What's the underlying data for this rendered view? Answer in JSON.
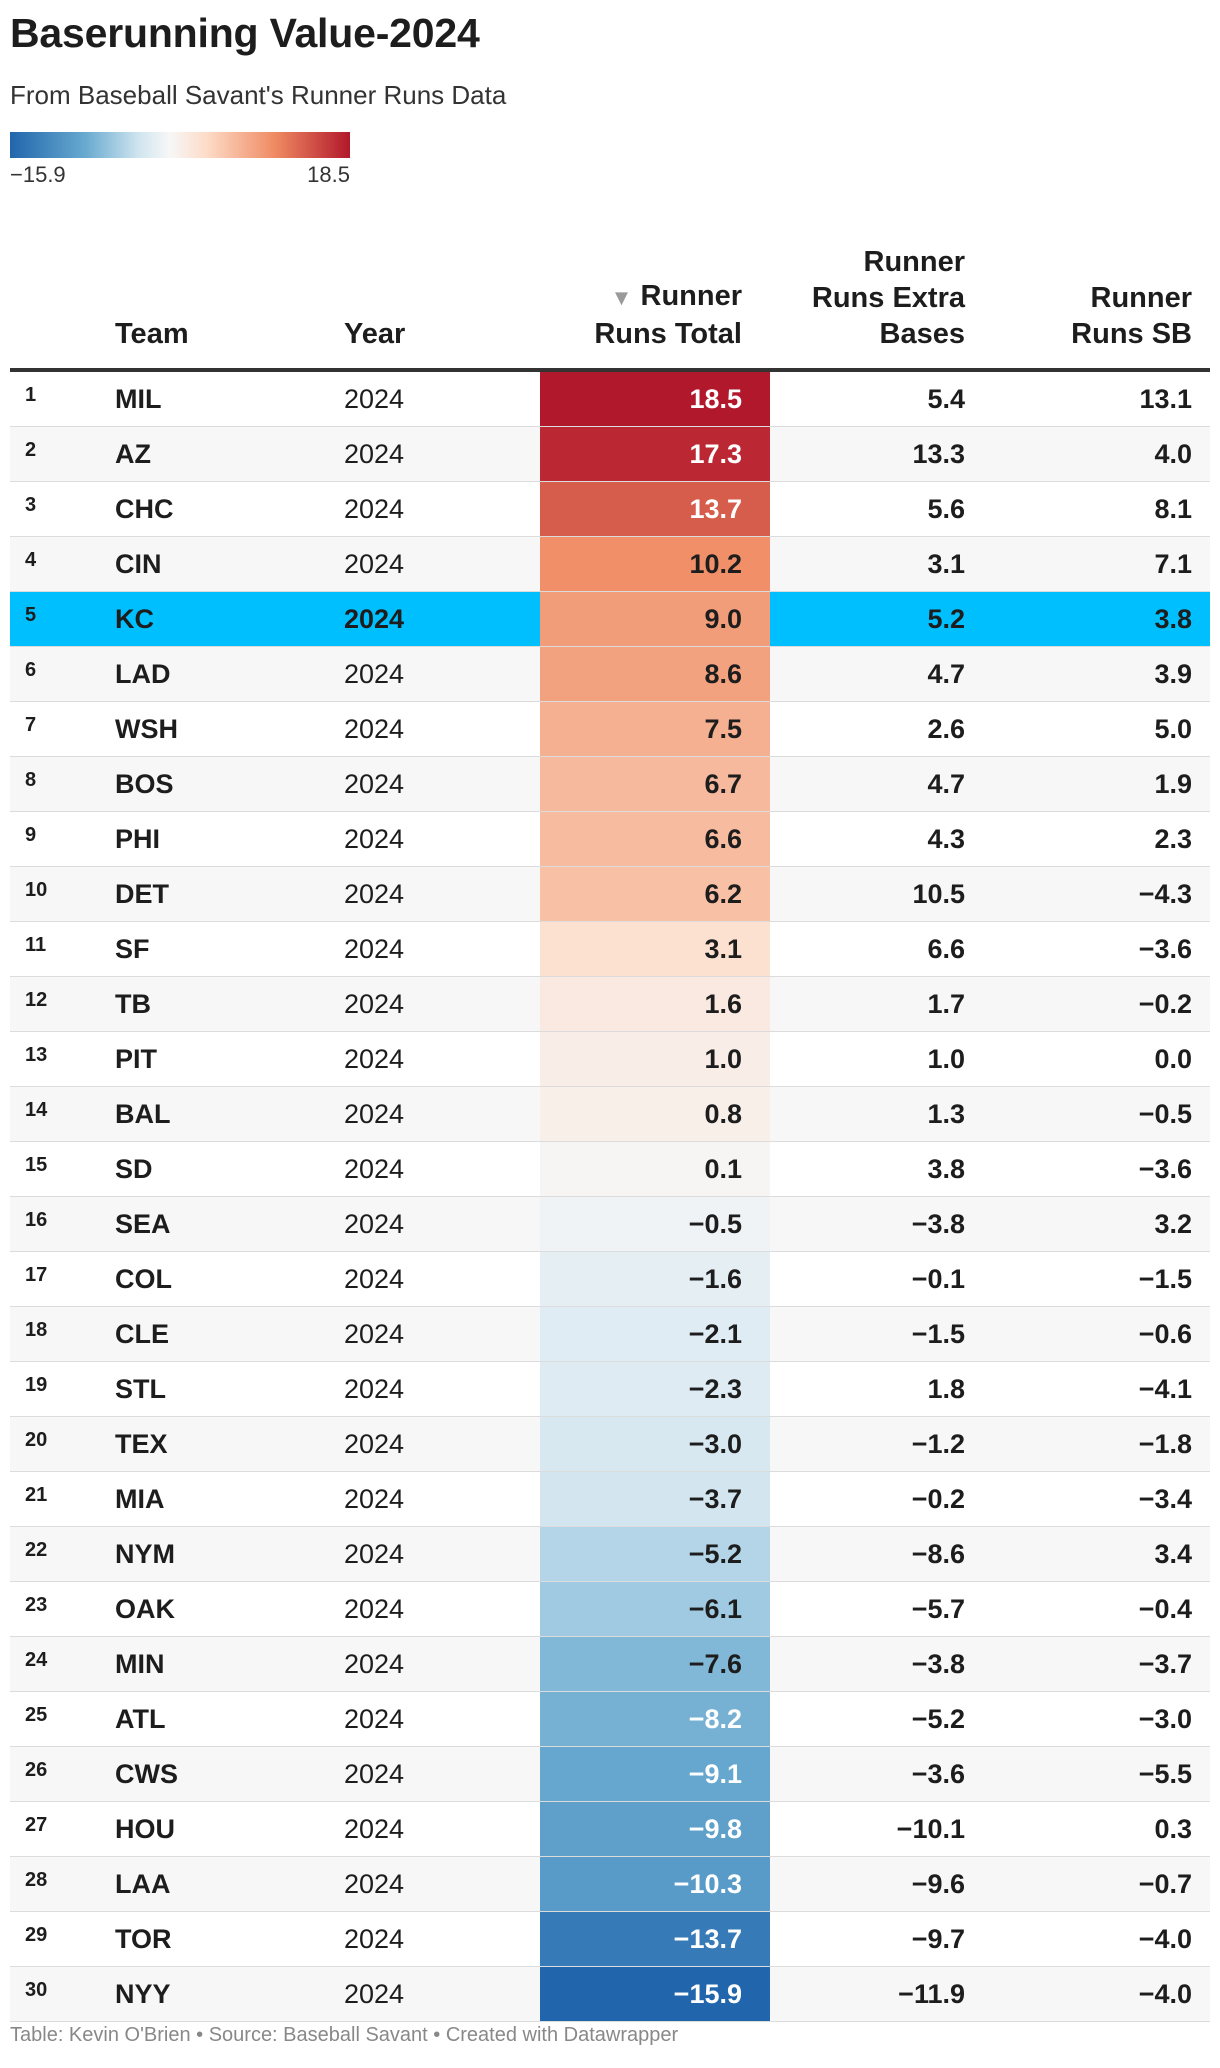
{
  "header": {
    "title": "Baserunning Value-2024",
    "subtitle": "From Baseball Savant's Runner Runs Data"
  },
  "legend": {
    "min_label": "−15.9",
    "max_label": "18.5"
  },
  "colors": {
    "highlight_row": "#00bfff",
    "scale_low": "#2166ac",
    "scale_mid": "#f7f7f7",
    "scale_high": "#b2182b"
  },
  "columns": {
    "team": "Team",
    "year": "Year",
    "sort_indicator": "▼",
    "total_line1": "Runner",
    "total_line2": "Runs Total",
    "xb_line1": "Runner",
    "xb_line2": "Runs Extra",
    "xb_line3": "Bases",
    "sb_line1": "Runner",
    "sb_line2": "Runs SB"
  },
  "chart_data": {
    "type": "table",
    "title": "Baserunning Value-2024",
    "subtitle": "From Baseball Savant's Runner Runs Data",
    "color_scale_column": "Runner Runs Total",
    "color_scale_range": [
      -15.9,
      18.5
    ],
    "highlighted_team": "KC",
    "rows": [
      {
        "rank": "1",
        "team": "MIL",
        "year": "2024",
        "total": "18.5",
        "xb": "5.4",
        "sb": "13.1"
      },
      {
        "rank": "2",
        "team": "AZ",
        "year": "2024",
        "total": "17.3",
        "xb": "13.3",
        "sb": "4.0"
      },
      {
        "rank": "3",
        "team": "CHC",
        "year": "2024",
        "total": "13.7",
        "xb": "5.6",
        "sb": "8.1"
      },
      {
        "rank": "4",
        "team": "CIN",
        "year": "2024",
        "total": "10.2",
        "xb": "3.1",
        "sb": "7.1"
      },
      {
        "rank": "5",
        "team": "KC",
        "year": "2024",
        "total": "9.0",
        "xb": "5.2",
        "sb": "3.8"
      },
      {
        "rank": "6",
        "team": "LAD",
        "year": "2024",
        "total": "8.6",
        "xb": "4.7",
        "sb": "3.9"
      },
      {
        "rank": "7",
        "team": "WSH",
        "year": "2024",
        "total": "7.5",
        "xb": "2.6",
        "sb": "5.0"
      },
      {
        "rank": "8",
        "team": "BOS",
        "year": "2024",
        "total": "6.7",
        "xb": "4.7",
        "sb": "1.9"
      },
      {
        "rank": "9",
        "team": "PHI",
        "year": "2024",
        "total": "6.6",
        "xb": "4.3",
        "sb": "2.3"
      },
      {
        "rank": "10",
        "team": "DET",
        "year": "2024",
        "total": "6.2",
        "xb": "10.5",
        "sb": "−4.3"
      },
      {
        "rank": "11",
        "team": "SF",
        "year": "2024",
        "total": "3.1",
        "xb": "6.6",
        "sb": "−3.6"
      },
      {
        "rank": "12",
        "team": "TB",
        "year": "2024",
        "total": "1.6",
        "xb": "1.7",
        "sb": "−0.2"
      },
      {
        "rank": "13",
        "team": "PIT",
        "year": "2024",
        "total": "1.0",
        "xb": "1.0",
        "sb": "0.0"
      },
      {
        "rank": "14",
        "team": "BAL",
        "year": "2024",
        "total": "0.8",
        "xb": "1.3",
        "sb": "−0.5"
      },
      {
        "rank": "15",
        "team": "SD",
        "year": "2024",
        "total": "0.1",
        "xb": "3.8",
        "sb": "−3.6"
      },
      {
        "rank": "16",
        "team": "SEA",
        "year": "2024",
        "total": "−0.5",
        "xb": "−3.8",
        "sb": "3.2"
      },
      {
        "rank": "17",
        "team": "COL",
        "year": "2024",
        "total": "−1.6",
        "xb": "−0.1",
        "sb": "−1.5"
      },
      {
        "rank": "18",
        "team": "CLE",
        "year": "2024",
        "total": "−2.1",
        "xb": "−1.5",
        "sb": "−0.6"
      },
      {
        "rank": "19",
        "team": "STL",
        "year": "2024",
        "total": "−2.3",
        "xb": "1.8",
        "sb": "−4.1"
      },
      {
        "rank": "20",
        "team": "TEX",
        "year": "2024",
        "total": "−3.0",
        "xb": "−1.2",
        "sb": "−1.8"
      },
      {
        "rank": "21",
        "team": "MIA",
        "year": "2024",
        "total": "−3.7",
        "xb": "−0.2",
        "sb": "−3.4"
      },
      {
        "rank": "22",
        "team": "NYM",
        "year": "2024",
        "total": "−5.2",
        "xb": "−8.6",
        "sb": "3.4"
      },
      {
        "rank": "23",
        "team": "OAK",
        "year": "2024",
        "total": "−6.1",
        "xb": "−5.7",
        "sb": "−0.4"
      },
      {
        "rank": "24",
        "team": "MIN",
        "year": "2024",
        "total": "−7.6",
        "xb": "−3.8",
        "sb": "−3.7"
      },
      {
        "rank": "25",
        "team": "ATL",
        "year": "2024",
        "total": "−8.2",
        "xb": "−5.2",
        "sb": "−3.0"
      },
      {
        "rank": "26",
        "team": "CWS",
        "year": "2024",
        "total": "−9.1",
        "xb": "−3.6",
        "sb": "−5.5"
      },
      {
        "rank": "27",
        "team": "HOU",
        "year": "2024",
        "total": "−9.8",
        "xb": "−10.1",
        "sb": "0.3"
      },
      {
        "rank": "28",
        "team": "LAA",
        "year": "2024",
        "total": "−10.3",
        "xb": "−9.6",
        "sb": "−0.7"
      },
      {
        "rank": "29",
        "team": "TOR",
        "year": "2024",
        "total": "−13.7",
        "xb": "−9.7",
        "sb": "−4.0"
      },
      {
        "rank": "30",
        "team": "NYY",
        "year": "2024",
        "total": "−15.9",
        "xb": "−11.9",
        "sb": "−4.0"
      }
    ]
  },
  "footer": {
    "text": "Table: Kevin O'Brien • Source: Baseball Savant • Created with Datawrapper"
  }
}
